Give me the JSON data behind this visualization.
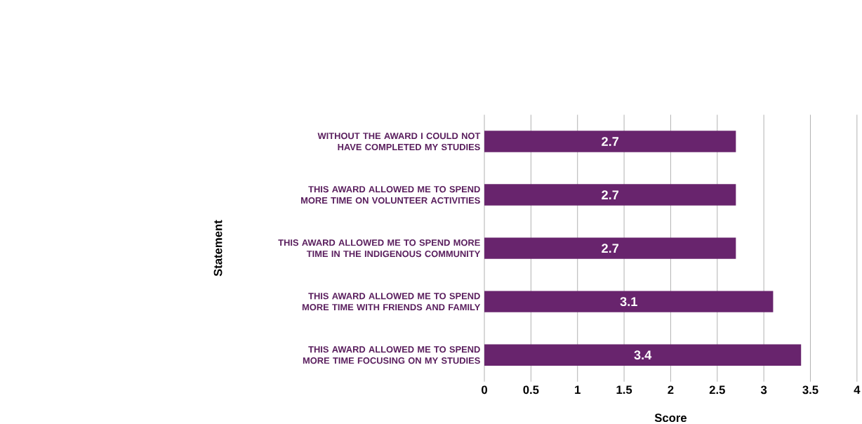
{
  "chart_data": {
    "type": "bar",
    "orientation": "horizontal",
    "xlabel": "Score",
    "ylabel": "Statement",
    "categories": [
      "WITHOUT THE AWARD I COULD NOT HAVE COMPLETED MY STUDIES",
      "THIS AWARD ALLOWED ME TO SPEND MORE TIME ON VOLUNTEER ACTIVITIES",
      "THIS AWARD ALLOWED ME TO SPEND MORE TIME IN THE INDIGENOUS COMMUNITY",
      "THIS AWARD ALLOWED ME TO SPEND MORE TIME WITH FRIENDS AND FAMILY",
      "THIS AWARD ALLOWED ME TO SPEND MORE TIME FOCUSING ON MY STUDIES"
    ],
    "values": [
      2.7,
      2.7,
      2.7,
      3.1,
      3.4
    ],
    "color": "#68246d",
    "data_labels": true,
    "xlim": [
      0,
      4
    ],
    "xticks": [
      0,
      0.5,
      1,
      1.5,
      2,
      2.5,
      3,
      3.5,
      4
    ],
    "grid": "x"
  }
}
